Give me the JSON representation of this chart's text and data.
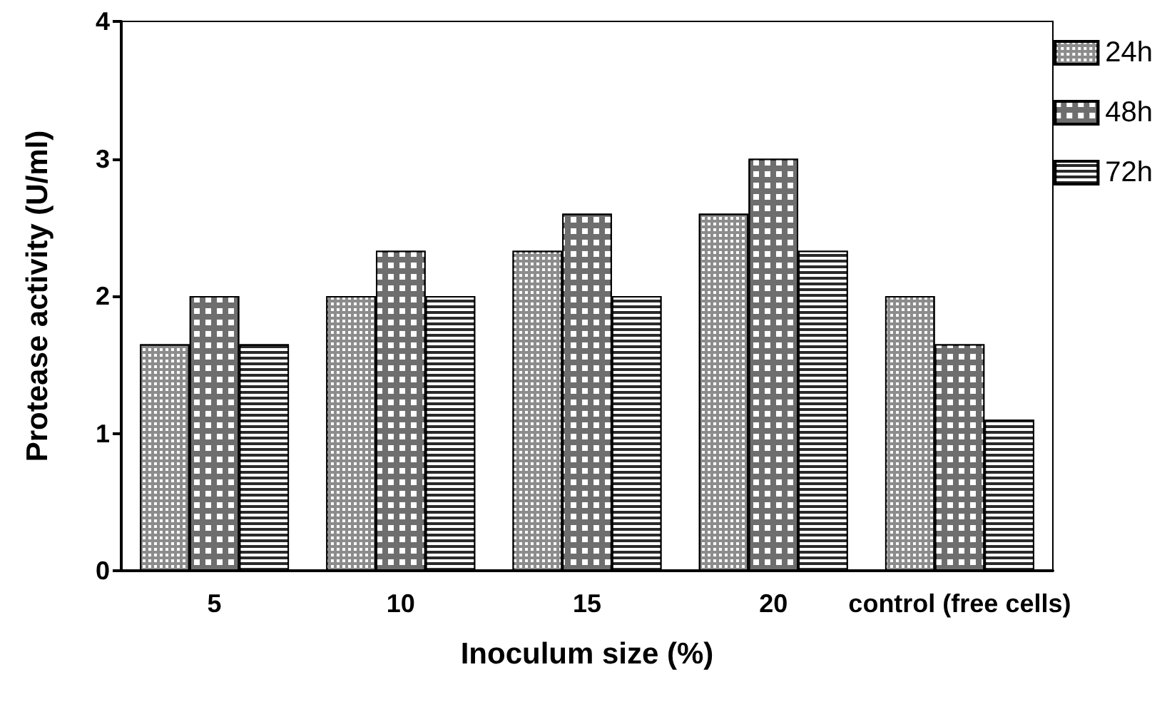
{
  "chart_data": {
    "type": "bar",
    "xlabel": "Inoculum size (%)",
    "ylabel": "Protease activity (U/ml)",
    "categories": [
      "5",
      "10",
      "15",
      "20",
      "control (free cells)"
    ],
    "series": [
      {
        "name": "24h",
        "color": "#8c8c8c",
        "values": [
          1.65,
          2.0,
          2.33,
          2.6,
          2.0
        ]
      },
      {
        "name": "48h",
        "color": "#6e6e6e",
        "values": [
          2.0,
          2.33,
          2.6,
          3.0,
          1.65
        ]
      },
      {
        "name": "72h",
        "color": "#2a2a2a",
        "values": [
          1.65,
          2.0,
          2.0,
          2.33,
          1.1
        ]
      }
    ],
    "ylim": [
      0,
      4
    ],
    "yticks": [
      0,
      1,
      2,
      3,
      4
    ],
    "grid": false,
    "legend": "top right"
  }
}
